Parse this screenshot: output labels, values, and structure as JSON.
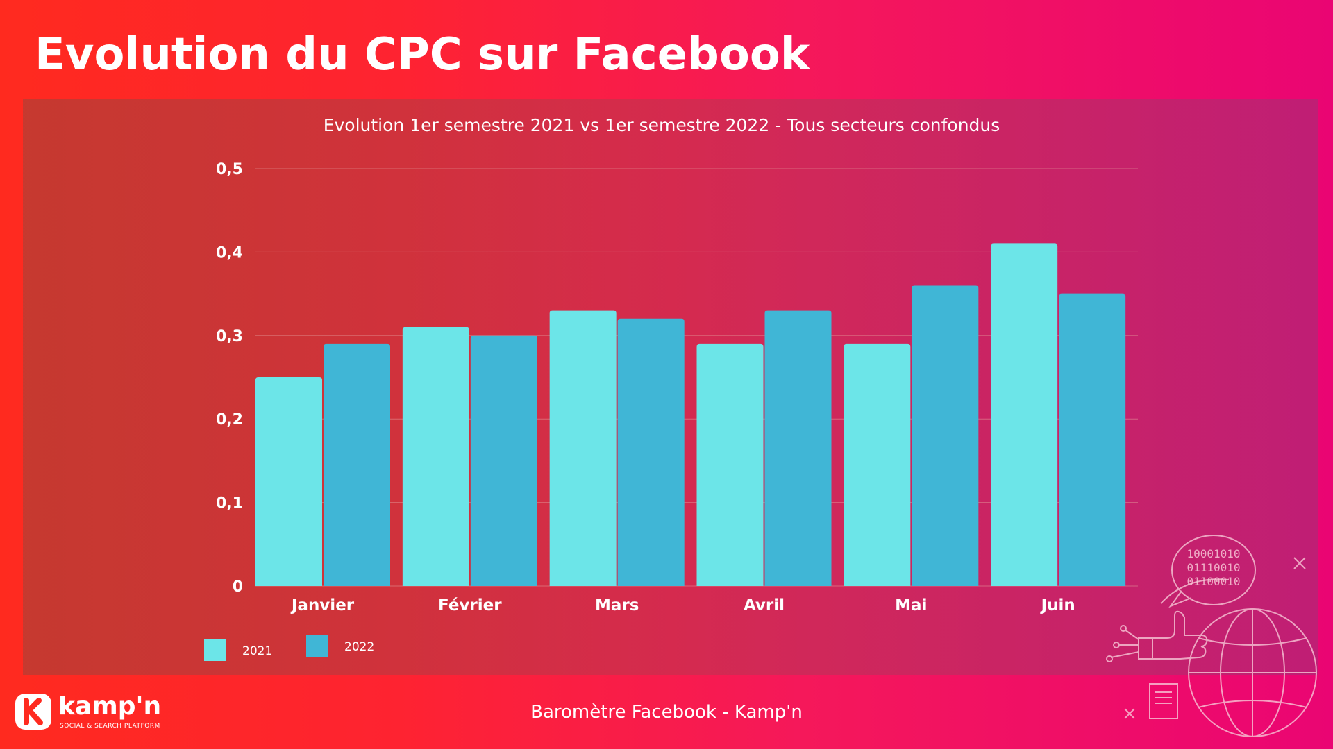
{
  "header": {
    "title": "Evolution du CPC sur Facebook"
  },
  "footer": {
    "text": "Baromètre Facebook - Kamp'n"
  },
  "logo": {
    "name": "kamp'n",
    "tagline": "SOCIAL & SEARCH PLATFORM"
  },
  "decoration": {
    "binary_lines": [
      "10001010",
      "01110010",
      "01100010"
    ]
  },
  "colors": {
    "series_2021": "#6ce5e8",
    "series_2022": "#40b6d6",
    "gridline": "#e39a9a"
  },
  "chart_data": {
    "type": "bar",
    "title": "Evolution 1er semestre 2021 vs 1er semestre 2022 - Tous secteurs confondus",
    "categories": [
      "Janvier",
      "Février",
      "Mars",
      "Avril",
      "Mai",
      "Juin"
    ],
    "series": [
      {
        "name": "2021",
        "values": [
          0.25,
          0.31,
          0.33,
          0.29,
          0.29,
          0.41
        ]
      },
      {
        "name": "2022",
        "values": [
          0.29,
          0.3,
          0.32,
          0.33,
          0.36,
          0.35
        ]
      }
    ],
    "yticks": [
      "0",
      "0,1",
      "0,2",
      "0,3",
      "0,4",
      "0,5"
    ],
    "ylim": [
      0,
      0.5
    ],
    "grid": true,
    "legend_position": "bottom-left"
  }
}
